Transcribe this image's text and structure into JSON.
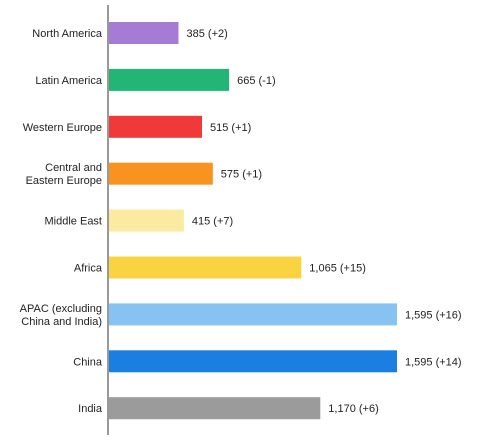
{
  "chart_data": {
    "type": "bar",
    "orientation": "horizontal",
    "categories": [
      [
        "North America"
      ],
      [
        "Latin America"
      ],
      [
        "Western Europe"
      ],
      [
        "Central and",
        "Eastern Europe"
      ],
      [
        "Middle East"
      ],
      [
        "Africa"
      ],
      [
        "APAC (excluding",
        "China and India)"
      ],
      [
        "China"
      ],
      [
        "India"
      ]
    ],
    "values": [
      385,
      665,
      515,
      575,
      415,
      1065,
      1595,
      1595,
      1170
    ],
    "value_labels": [
      "385 (+2)",
      "665 (-1)",
      "515 (+1)",
      "575 (+1)",
      "415 (+7)",
      "1,065 (+15)",
      "1,595 (+16)",
      "1,595 (+14)",
      "1,170 (+6)"
    ],
    "colors": [
      "#a67bd4",
      "#22b573",
      "#f03a3a",
      "#f7931e",
      "#faeba0",
      "#f9d440",
      "#86c3f3",
      "#1a7fe0",
      "#9b9b9b"
    ],
    "xlim": [
      0,
      1595
    ],
    "grid": false,
    "legend": "none",
    "title": "",
    "xlabel": "",
    "ylabel": ""
  }
}
